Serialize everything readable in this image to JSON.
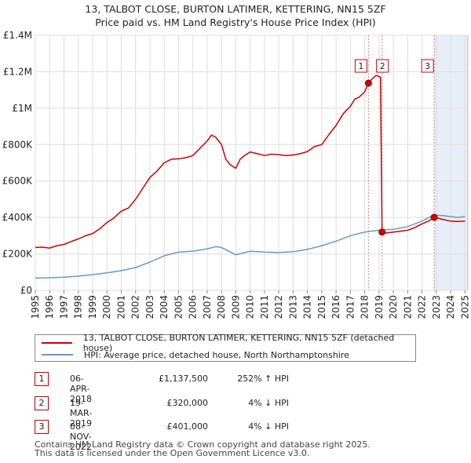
{
  "title_line1": "13, TALBOT CLOSE, BURTON LATIMER, KETTERING, NN15 5ZF",
  "title_line2": "Price paid vs. HM Land Registry's House Price Index (HPI)",
  "chart_data": {
    "type": "line",
    "title": "13, TALBOT CLOSE, BURTON LATIMER, KETTERING, NN15 5ZF — Price paid vs. HM Land Registry's House Price Index (HPI)",
    "xlim": [
      1995,
      2025.2
    ],
    "ylim": [
      0,
      1400000
    ],
    "y_ticks": [
      0,
      200000,
      400000,
      600000,
      800000,
      1000000,
      1200000,
      1400000
    ],
    "y_tick_labels": [
      "£0",
      "£200K",
      "£400K",
      "£600K",
      "£800K",
      "£1M",
      "£1.2M",
      "£1.4M"
    ],
    "x_ticks": [
      1995,
      1996,
      1997,
      1998,
      1999,
      2000,
      2001,
      2002,
      2003,
      2004,
      2005,
      2006,
      2007,
      2008,
      2009,
      2010,
      2011,
      2012,
      2013,
      2014,
      2015,
      2016,
      2017,
      2018,
      2019,
      2020,
      2021,
      2022,
      2023,
      2024,
      2025
    ],
    "x_tick_labels": [
      "1995",
      "1996",
      "1997",
      "1998",
      "1999",
      "2000",
      "2001",
      "2002",
      "2003",
      "2004",
      "2005",
      "2006",
      "2007",
      "2008",
      "2009",
      "2010",
      "2011",
      "2012",
      "2013",
      "2014",
      "2015",
      "2016",
      "2017",
      "2018",
      "2019",
      "2020",
      "2021",
      "2022",
      "2023",
      "2024",
      "2025"
    ],
    "grid": true,
    "series": [
      {
        "name": "13, TALBOT CLOSE, BURTON LATIMER, KETTERING, NN15 5ZF (detached house)",
        "color": "#cc0000",
        "x": [
          1995,
          1995.5,
          1996,
          1996.5,
          1997,
          1997.5,
          1998,
          1998.5,
          1999,
          1999.5,
          2000,
          2000.5,
          2001,
          2001.5,
          2002,
          2002.5,
          2003,
          2003.5,
          2004,
          2004.5,
          2005,
          2005.5,
          2006,
          2006.5,
          2007,
          2007.3,
          2007.6,
          2008,
          2008.3,
          2008.6,
          2009,
          2009.3,
          2009.6,
          2010,
          2010.5,
          2011,
          2011.5,
          2012,
          2012.5,
          2013,
          2013.5,
          2014,
          2014.5,
          2015,
          2015.5,
          2016,
          2016.5,
          2017,
          2017.3,
          2017.6,
          2018,
          2018.26,
          2018.5,
          2018.8,
          2019.1,
          2019.21,
          2019.5,
          2020,
          2020.5,
          2021,
          2021.5,
          2022,
          2022.5,
          2022.85,
          2023,
          2023.5,
          2024,
          2024.5,
          2025
        ],
        "y": [
          235000,
          237000,
          232000,
          245000,
          252000,
          268000,
          282000,
          300000,
          312000,
          338000,
          372000,
          398000,
          435000,
          452000,
          500000,
          560000,
          620000,
          655000,
          700000,
          720000,
          722000,
          728000,
          740000,
          780000,
          820000,
          852000,
          840000,
          800000,
          720000,
          690000,
          670000,
          720000,
          740000,
          760000,
          750000,
          740000,
          748000,
          745000,
          740000,
          743000,
          750000,
          762000,
          790000,
          800000,
          855000,
          905000,
          970000,
          1010000,
          1050000,
          1060000,
          1090000,
          1137500,
          1160000,
          1180000,
          1170000,
          320000,
          315000,
          320000,
          325000,
          330000,
          345000,
          365000,
          382000,
          401000,
          398000,
          388000,
          380000,
          378000,
          380000
        ]
      },
      {
        "name": "HPI: Average price, detached house, North Northamptonshire",
        "color": "#6699cc",
        "x": [
          1995,
          1996,
          1997,
          1998,
          1999,
          2000,
          2001,
          2002,
          2003,
          2004,
          2005,
          2006,
          2007,
          2007.6,
          2008,
          2008.5,
          2009,
          2009.5,
          2010,
          2011,
          2012,
          2013,
          2014,
          2015,
          2016,
          2017,
          2018,
          2019,
          2020,
          2021,
          2022,
          2022.85,
          2023,
          2023.5,
          2024,
          2024.5,
          2025
        ],
        "y": [
          68000,
          69000,
          72000,
          78000,
          86000,
          96000,
          108000,
          125000,
          155000,
          190000,
          210000,
          215000,
          228000,
          240000,
          235000,
          215000,
          195000,
          205000,
          215000,
          210000,
          208000,
          212000,
          225000,
          245000,
          270000,
          300000,
          320000,
          330000,
          335000,
          350000,
          380000,
          415000,
          412000,
          410000,
          405000,
          400000,
          405000
        ]
      }
    ],
    "sales": [
      {
        "label": "1",
        "x": 2018.26,
        "y": 1137500
      },
      {
        "label": "2",
        "x": 2019.21,
        "y": 320000
      },
      {
        "label": "3",
        "x": 2022.85,
        "y": 401000
      }
    ]
  },
  "legend": {
    "property": "13, TALBOT CLOSE, BURTON LATIMER, KETTERING, NN15 5ZF (detached house)",
    "hpi": "HPI: Average price, detached house, North Northamptonshire"
  },
  "transactions": [
    {
      "num": "1",
      "date": "06-APR-2018",
      "price": "£1,137,500",
      "hpi": "252% ↑ HPI"
    },
    {
      "num": "2",
      "date": "19-MAR-2019",
      "price": "£320,000",
      "hpi": "4% ↓ HPI"
    },
    {
      "num": "3",
      "date": "08-NOV-2022",
      "price": "£401,000",
      "hpi": "4% ↓ HPI"
    }
  ],
  "footer_line1": "Contains HM Land Registry data © Crown copyright and database right 2025.",
  "footer_line2": "This data is licensed under the Open Government Licence v3.0."
}
